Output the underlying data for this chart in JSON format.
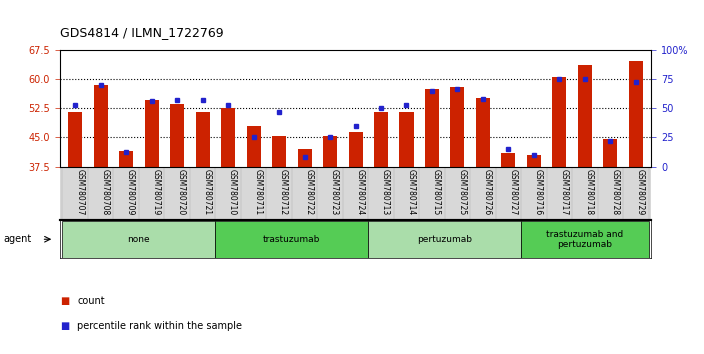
{
  "title": "GDS4814 / ILMN_1722769",
  "samples": [
    "GSM780707",
    "GSM780708",
    "GSM780709",
    "GSM780719",
    "GSM780720",
    "GSM780721",
    "GSM780710",
    "GSM780711",
    "GSM780712",
    "GSM780722",
    "GSM780723",
    "GSM780724",
    "GSM780713",
    "GSM780714",
    "GSM780715",
    "GSM780725",
    "GSM780726",
    "GSM780727",
    "GSM780716",
    "GSM780717",
    "GSM780718",
    "GSM780728",
    "GSM780729"
  ],
  "counts": [
    51.5,
    58.5,
    41.5,
    54.5,
    53.5,
    51.5,
    52.5,
    48.0,
    45.5,
    42.0,
    45.5,
    46.5,
    51.5,
    51.5,
    57.5,
    58.0,
    55.0,
    41.0,
    40.5,
    60.5,
    63.5,
    44.5,
    64.5
  ],
  "percentiles": [
    53,
    70,
    13,
    56,
    57,
    57,
    53,
    25,
    47,
    8,
    25,
    35,
    50,
    53,
    65,
    66,
    58,
    15,
    10,
    75,
    75,
    22,
    72
  ],
  "groups": [
    {
      "label": "none",
      "start": 0,
      "end": 6,
      "color": "#aaddaa"
    },
    {
      "label": "trastuzumab",
      "start": 6,
      "end": 12,
      "color": "#55cc55"
    },
    {
      "label": "pertuzumab",
      "start": 12,
      "end": 18,
      "color": "#aaddaa"
    },
    {
      "label": "trastuzumab and\npertuzumab",
      "start": 18,
      "end": 23,
      "color": "#55cc55"
    }
  ],
  "ylim_left": [
    37.5,
    67.5
  ],
  "yticks_left": [
    37.5,
    45.0,
    52.5,
    60.0,
    67.5
  ],
  "ylim_right": [
    0,
    100
  ],
  "yticks_right": [
    0,
    25,
    50,
    75,
    100
  ],
  "bar_color": "#cc2200",
  "dot_color": "#2222cc",
  "plot_bg": "#ffffff",
  "left_tick_color": "#cc2200",
  "right_tick_color": "#2222cc",
  "xtick_bg": "#d8d8d8"
}
